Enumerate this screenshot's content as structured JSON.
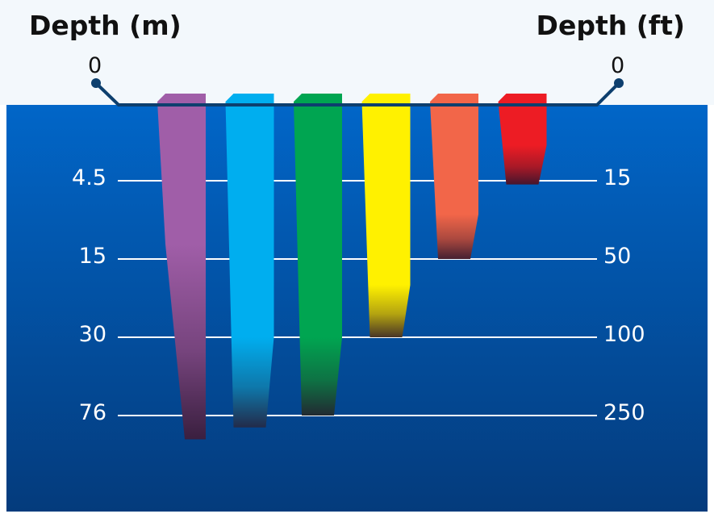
{
  "headers": {
    "left": "Depth (m)",
    "right": "Depth (ft)"
  },
  "surface_labels": {
    "left": "0",
    "right": "0"
  },
  "depth_levels": [
    {
      "m": "4.5",
      "ft": "15",
      "m_value": 4.5
    },
    {
      "m": "15",
      "ft": "50",
      "m_value": 15
    },
    {
      "m": "30",
      "ft": "100",
      "m_value": 30
    },
    {
      "m": "76",
      "ft": "250",
      "m_value": 76
    }
  ],
  "colors": {
    "sky": "#f3f8fc",
    "water_top": "#0166c8",
    "water_bottom": "#043b7c",
    "surface_line": "#0d3f6e",
    "gridline": "#ffffff"
  },
  "light_bands": [
    {
      "color_name": "violet",
      "color": "#a05ea8",
      "full_strength_to_m": 13,
      "fade_to_m": 90
    },
    {
      "color_name": "blue",
      "color": "#00aeef",
      "full_strength_to_m": 30,
      "fade_to_m": 83
    },
    {
      "color_name": "green",
      "color": "#00a551",
      "full_strength_to_m": 30,
      "fade_to_m": 76
    },
    {
      "color_name": "yellow",
      "color": "#fff100",
      "full_strength_to_m": 20,
      "fade_to_m": 30
    },
    {
      "color_name": "orange",
      "color": "#f26649",
      "full_strength_to_m": 9,
      "fade_to_m": 15
    },
    {
      "color_name": "red",
      "color": "#ed1c24",
      "full_strength_to_m": 2.5,
      "fade_to_m": 5
    }
  ]
}
